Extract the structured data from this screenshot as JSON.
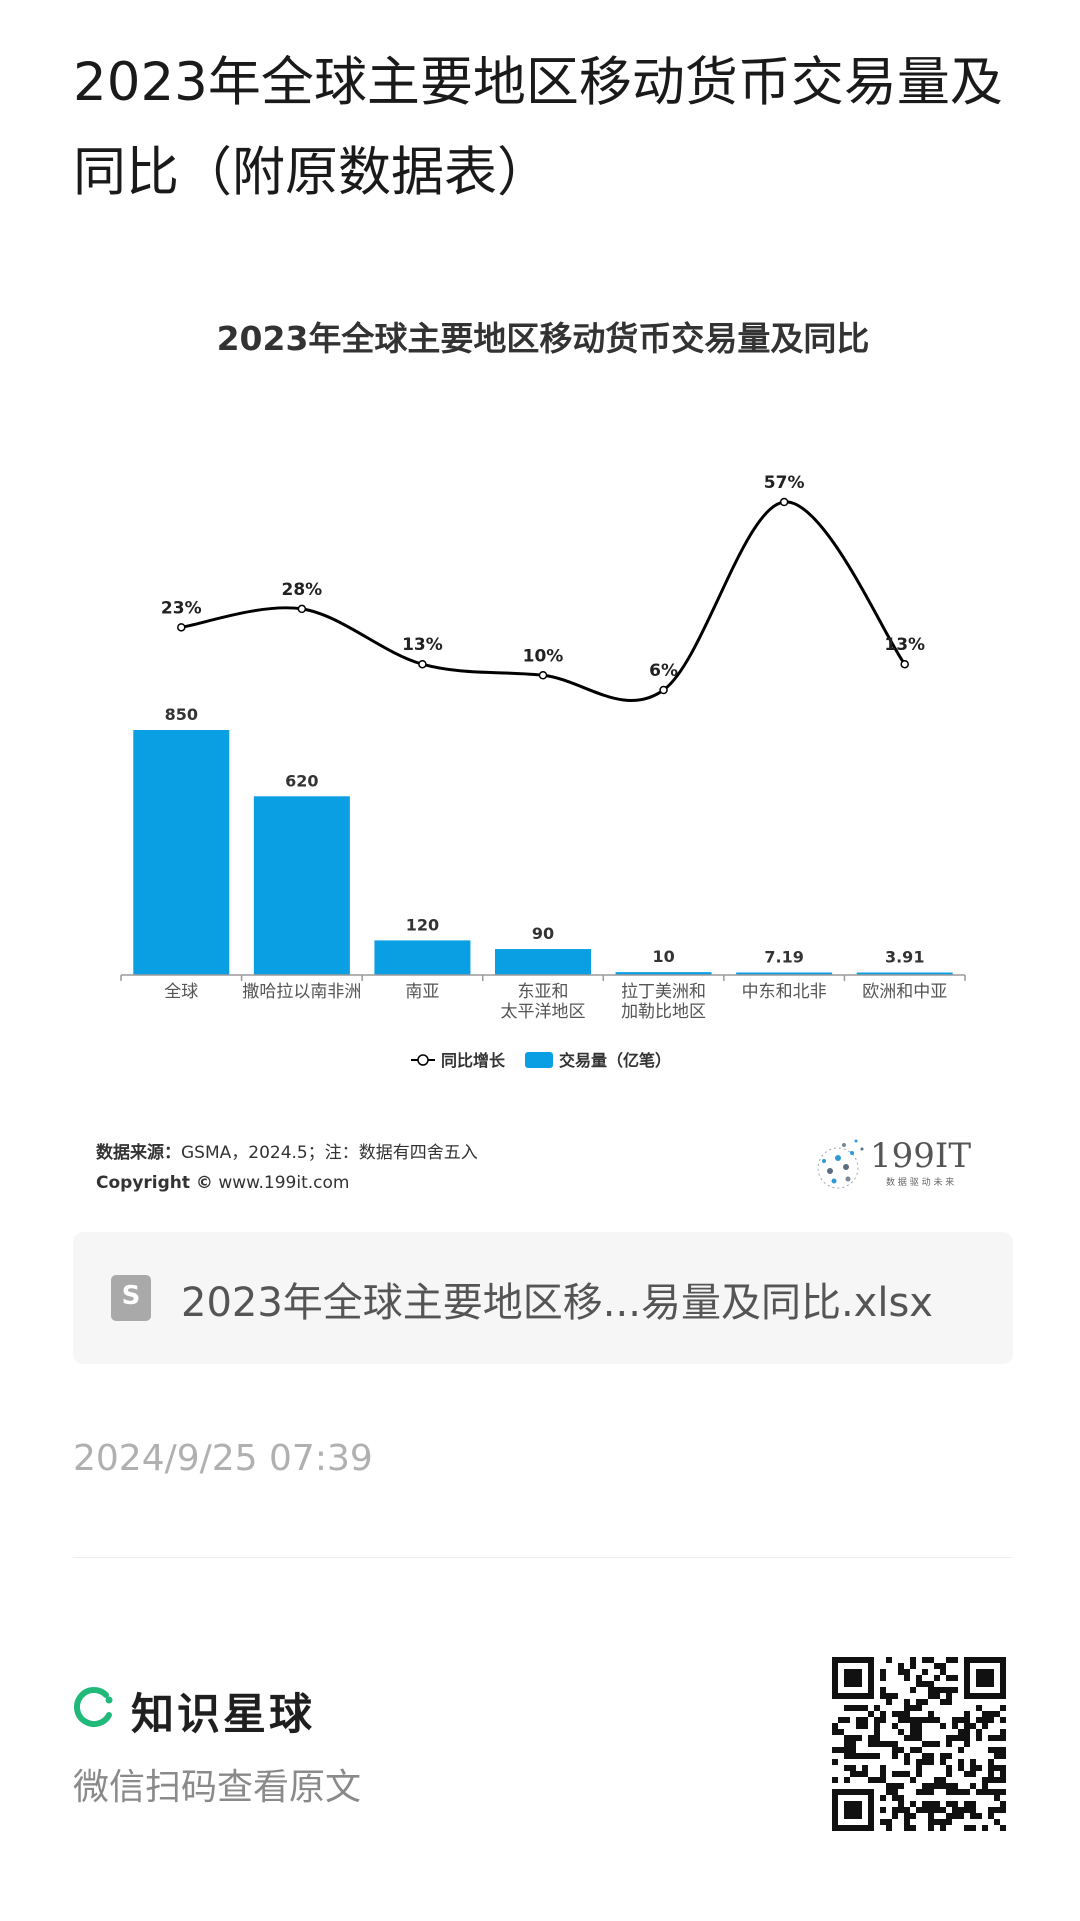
{
  "page": {
    "title": "2023年全球主要地区移动货币交易量及同比（附原数据表）"
  },
  "chart_data": {
    "type": "bar",
    "title": "2023年全球主要地区移动货币交易量及同比",
    "categories": [
      [
        "全球"
      ],
      [
        "撒哈拉以南非洲"
      ],
      [
        "南亚"
      ],
      [
        "东亚和",
        "太平洋地区"
      ],
      [
        "拉丁美洲和",
        "加勒比地区"
      ],
      [
        "中东和北非"
      ],
      [
        "欧洲和中亚"
      ]
    ],
    "series": [
      {
        "name": "交易量（亿笔）",
        "kind": "bar",
        "color": "#0a9fe3",
        "values": [
          850,
          620,
          120,
          90,
          10,
          7.19,
          3.91
        ],
        "labels": [
          "850",
          "620",
          "120",
          "90",
          "10",
          "7.19",
          "3.91"
        ]
      },
      {
        "name": "同比增长",
        "kind": "line",
        "color": "#000000",
        "values": [
          23,
          28,
          13,
          10,
          6,
          57,
          13
        ],
        "labels": [
          "23%",
          "28%",
          "13%",
          "10%",
          "6%",
          "57%",
          "13%"
        ]
      }
    ],
    "legend_position": "bottom",
    "grid": false,
    "bar_ylim": [
      0,
      850
    ],
    "line_ylim": [
      6,
      57
    ]
  },
  "footer": {
    "source_label": "数据来源：",
    "source_text": "GSMA，2024.5；注：数据有四舍五入",
    "copyright_label": "Copyright ©",
    "copyright_url": "www.199it.com",
    "logo_text": "199IT",
    "logo_tagline": "数 据 驱 动 未 来"
  },
  "attachment": {
    "icon": "spreadsheet-file-icon",
    "icon_letter": "S",
    "file_name": "2023年全球主要地区移...易量及同比.xlsx"
  },
  "meta": {
    "timestamp": "2024/9/25 07:39"
  },
  "promo": {
    "brand_name": "知识星球",
    "scan_text": "微信扫码查看原文",
    "brand_color": "#21b97a"
  }
}
